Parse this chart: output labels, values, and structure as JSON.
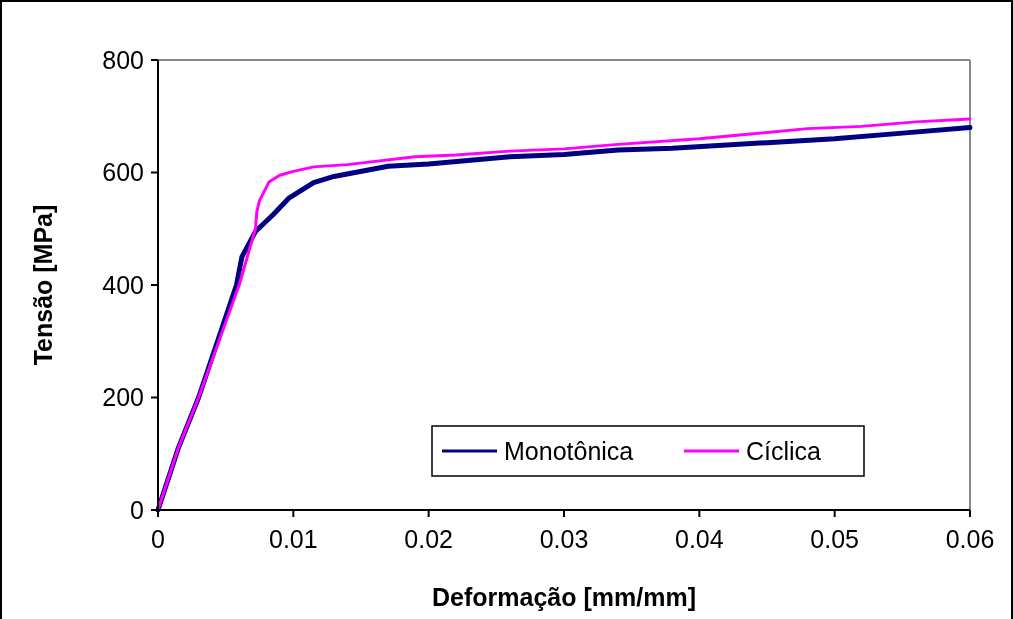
{
  "chart_data": {
    "type": "line",
    "xlabel": "Deformação [mm/mm]",
    "ylabel": "Tensão [MPa]",
    "xlim": [
      0,
      0.06
    ],
    "xticks": [
      0,
      0.01,
      0.02,
      0.03,
      0.04,
      0.05,
      0.06
    ],
    "ylim": [
      0,
      800
    ],
    "yticks": [
      0,
      200,
      400,
      600,
      800
    ],
    "grid": false,
    "legend": "bottom right",
    "series": [
      {
        "name": "Monotônica",
        "color": "#000080",
        "x": [
          0,
          0.0015,
          0.003,
          0.0058,
          0.0062,
          0.0072,
          0.0085,
          0.0097,
          0.0115,
          0.013,
          0.017,
          0.02,
          0.026,
          0.03,
          0.034,
          0.038,
          0.045,
          0.05,
          0.055,
          0.06
        ],
        "values": [
          0,
          110,
          200,
          400,
          450,
          495,
          525,
          555,
          582,
          593,
          611,
          615,
          628,
          632,
          640,
          643,
          653,
          660,
          670,
          680
        ]
      },
      {
        "name": "Cíclica",
        "color": "#ff00ff",
        "x": [
          0,
          0.0015,
          0.003,
          0.006,
          0.0072,
          0.0073,
          0.0075,
          0.0082,
          0.009,
          0.01,
          0.0115,
          0.014,
          0.019,
          0.022,
          0.026,
          0.03,
          0.034,
          0.04,
          0.048,
          0.052,
          0.056,
          0.06
        ],
        "values": [
          0,
          110,
          200,
          400,
          500,
          530,
          550,
          583,
          595,
          602,
          610,
          614,
          628,
          631,
          638,
          642,
          650,
          660,
          678,
          682,
          690,
          695
        ]
      }
    ]
  }
}
